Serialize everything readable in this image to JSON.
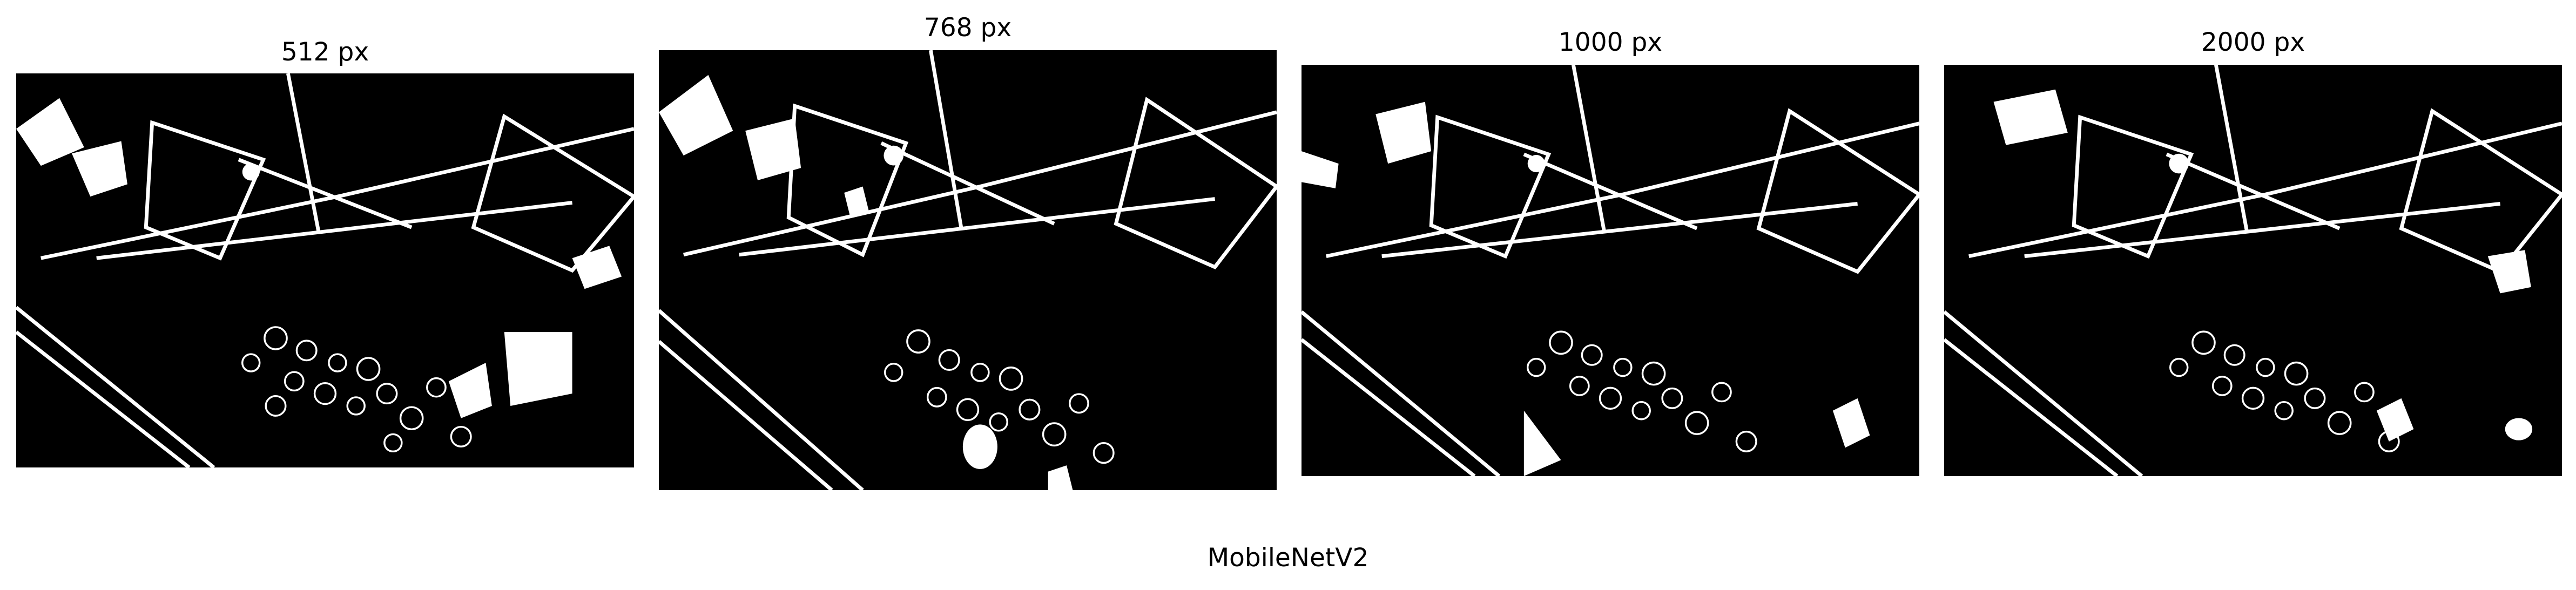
{
  "figure": {
    "caption": "MobileNetV2",
    "colors": {
      "background": "#000000",
      "foreground": "#ffffff"
    },
    "panels": [
      {
        "title": "512 px",
        "content": "binary segmentation mask of aerial scene"
      },
      {
        "title": "768 px",
        "content": "binary segmentation mask of aerial scene"
      },
      {
        "title": "1000 px",
        "content": "binary segmentation mask of aerial scene"
      },
      {
        "title": "2000 px",
        "content": "binary segmentation mask of aerial scene"
      }
    ]
  }
}
